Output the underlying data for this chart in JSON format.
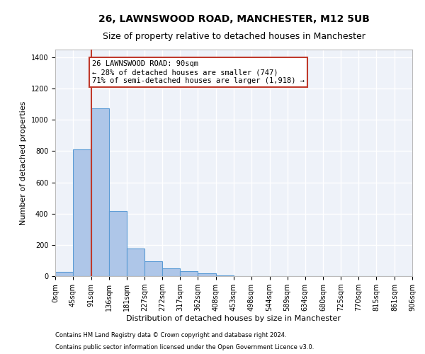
{
  "title": "26, LAWNSWOOD ROAD, MANCHESTER, M12 5UB",
  "subtitle": "Size of property relative to detached houses in Manchester",
  "xlabel": "Distribution of detached houses by size in Manchester",
  "ylabel": "Number of detached properties",
  "bar_values": [
    25,
    810,
    1075,
    415,
    178,
    95,
    50,
    30,
    18,
    5,
    2,
    1,
    0,
    0,
    0,
    0,
    0,
    0,
    0,
    0
  ],
  "bin_edges": [
    0,
    45,
    91,
    136,
    181,
    227,
    272,
    317,
    362,
    408,
    453,
    498,
    544,
    589,
    634,
    680,
    725,
    770,
    815,
    861,
    906
  ],
  "bar_color": "#aec6e8",
  "bar_edge_color": "#5b9bd5",
  "vline_x": 91,
  "vline_color": "#c0392b",
  "annotation_text": "26 LAWNSWOOD ROAD: 90sqm\n← 28% of detached houses are smaller (747)\n71% of semi-detached houses are larger (1,918) →",
  "annotation_box_color": "white",
  "annotation_box_edge": "#c0392b",
  "ylim": [
    0,
    1450
  ],
  "yticks": [
    0,
    200,
    400,
    600,
    800,
    1000,
    1200,
    1400
  ],
  "footer_line1": "Contains HM Land Registry data © Crown copyright and database right 2024.",
  "footer_line2": "Contains public sector information licensed under the Open Government Licence v3.0.",
  "bg_color": "#eef2f9",
  "grid_color": "white",
  "title_fontsize": 10,
  "subtitle_fontsize": 9,
  "axis_label_fontsize": 8,
  "tick_label_fontsize": 7,
  "footer_fontsize": 6
}
